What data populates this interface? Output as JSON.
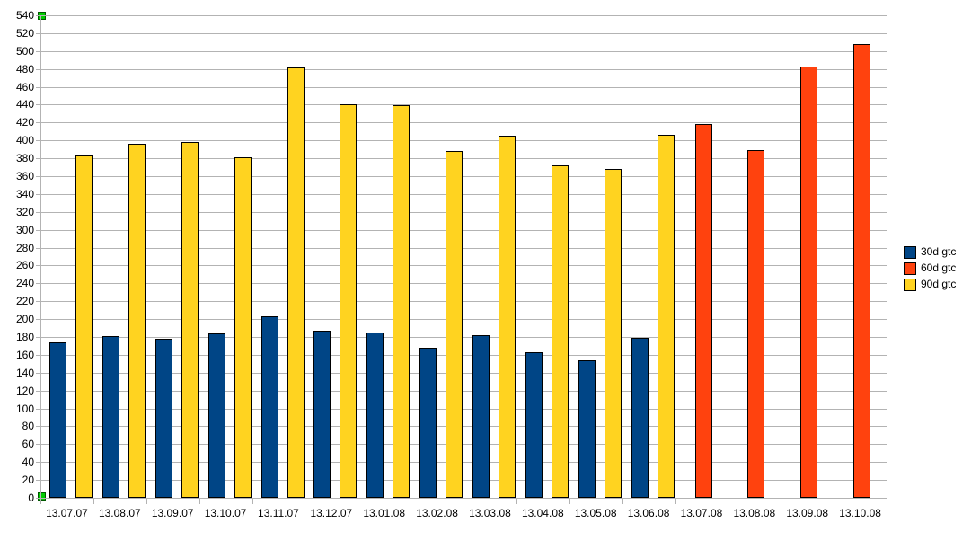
{
  "chart_data": {
    "type": "bar",
    "title": "",
    "xlabel": "",
    "ylabel": "",
    "categories": [
      "13.07.07",
      "13.08.07",
      "13.09.07",
      "13.10.07",
      "13.11.07",
      "13.12.07",
      "13.01.08",
      "13.02.08",
      "13.03.08",
      "13.04.08",
      "13.05.08",
      "13.06.08",
      "13.07.08",
      "13.08.08",
      "13.09.08",
      "13.10.08"
    ],
    "series": [
      {
        "name": "30d gtc",
        "color": "#004586",
        "values": [
          174,
          181,
          178,
          184,
          203,
          187,
          185,
          168,
          182,
          163,
          154,
          179,
          null,
          null,
          null,
          null
        ]
      },
      {
        "name": "60d gtc",
        "color": "#FF420E",
        "values": [
          null,
          null,
          null,
          null,
          null,
          null,
          null,
          null,
          null,
          null,
          null,
          null,
          418,
          389,
          483,
          508
        ]
      },
      {
        "name": "90d gtc",
        "color": "#FFD320",
        "values": [
          383,
          396,
          398,
          381,
          482,
          440,
          439,
          388,
          405,
          372,
          368,
          406,
          null,
          null,
          null,
          null
        ]
      }
    ],
    "ylim": [
      0,
      540
    ],
    "ytick_step": 20,
    "grid": "horizontal",
    "gridline_color": "#B3B3B3",
    "axis_color": "#B3B3B3",
    "bar_border_color": "#000000",
    "background": "#FFFFFF",
    "legend_position": "right",
    "legend_labels": [
      "30d gtc",
      "60d gtc",
      "90d gtc"
    ]
  },
  "selection": {
    "handle_color": "#00CC00",
    "handles": [
      "y-axis-top",
      "y-axis-bottom"
    ]
  }
}
